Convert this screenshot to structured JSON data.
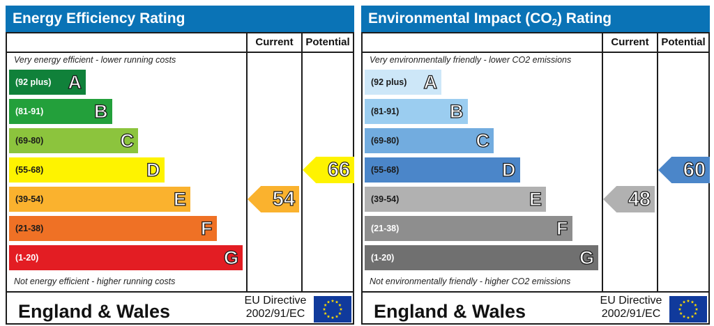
{
  "chart_data": [
    {
      "type": "bar",
      "title": "Energy Efficiency Rating",
      "columns": [
        "Current",
        "Potential"
      ],
      "top_note": "Very energy efficient - lower running costs",
      "bottom_note": "Not energy efficient - higher running costs",
      "bands": [
        {
          "range": "(92 plus)",
          "letter": "A",
          "color": "#10813a",
          "text_color": "#ffffff"
        },
        {
          "range": "(81-91)",
          "letter": "B",
          "color": "#23a03b",
          "text_color": "#ffffff"
        },
        {
          "range": "(69-80)",
          "letter": "C",
          "color": "#8cc43d",
          "text_color": "#1a1a1a"
        },
        {
          "range": "(55-68)",
          "letter": "D",
          "color": "#fef300",
          "text_color": "#1a1a1a"
        },
        {
          "range": "(39-54)",
          "letter": "E",
          "color": "#fab22e",
          "text_color": "#1a1a1a"
        },
        {
          "range": "(21-38)",
          "letter": "F",
          "color": "#ef7125",
          "text_color": "#1a1a1a"
        },
        {
          "range": "(1-20)",
          "letter": "G",
          "color": "#e31d23",
          "text_color": "#ffffff"
        }
      ],
      "current": {
        "value": "54",
        "band": 4,
        "color": "#fab22e"
      },
      "potential": {
        "value": "66",
        "band": 3,
        "color": "#fef300"
      },
      "footer": {
        "region": "England & Wales",
        "directive_line1": "EU Directive",
        "directive_line2": "2002/91/EC"
      }
    },
    {
      "type": "bar",
      "title": "Environmental Impact (CO",
      "title_sub": "2",
      "title_end": ") Rating",
      "columns": [
        "Current",
        "Potential"
      ],
      "top_note": "Very environmentally friendly - lower CO2 emissions",
      "bottom_note": "Not environmentally friendly - higher CO2 emissions",
      "bands": [
        {
          "range": "(92 plus)",
          "letter": "A",
          "color": "#cde7f8",
          "text_color": "#1a1a1a"
        },
        {
          "range": "(81-91)",
          "letter": "B",
          "color": "#9bcdf0",
          "text_color": "#1a1a1a"
        },
        {
          "range": "(69-80)",
          "letter": "C",
          "color": "#72acdf",
          "text_color": "#1a1a1a"
        },
        {
          "range": "(55-68)",
          "letter": "D",
          "color": "#4b86c9",
          "text_color": "#1a1a1a"
        },
        {
          "range": "(39-54)",
          "letter": "E",
          "color": "#b1b1b1",
          "text_color": "#1a1a1a"
        },
        {
          "range": "(21-38)",
          "letter": "F",
          "color": "#8e8e8e",
          "text_color": "#ffffff"
        },
        {
          "range": "(1-20)",
          "letter": "G",
          "color": "#707070",
          "text_color": "#ffffff"
        }
      ],
      "current": {
        "value": "48",
        "band": 4,
        "color": "#b1b1b1"
      },
      "potential": {
        "value": "60",
        "band": 3,
        "color": "#4b86c9"
      },
      "footer": {
        "region": "England & Wales",
        "directive_line1": "EU Directive",
        "directive_line2": "2002/91/EC"
      }
    }
  ]
}
